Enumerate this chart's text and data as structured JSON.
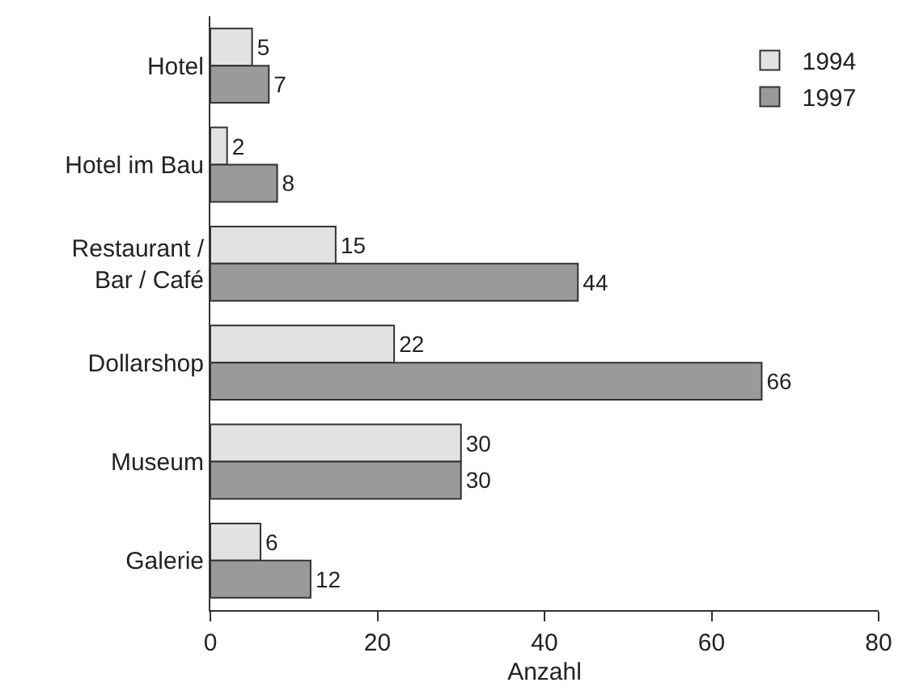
{
  "chart_data": {
    "type": "bar",
    "orientation": "horizontal",
    "xlabel": "Anzahl",
    "categories": [
      "Hotel",
      "Hotel im Bau",
      "Restaurant /\nBar / Café",
      "Dollarshop",
      "Museum",
      "Galerie"
    ],
    "series": [
      {
        "name": "1994",
        "color": "#e2e2e2",
        "values": [
          5,
          2,
          15,
          22,
          30,
          6
        ]
      },
      {
        "name": "1997",
        "color": "#9a9a9a",
        "values": [
          7,
          8,
          44,
          66,
          30,
          12
        ]
      }
    ],
    "xlim": [
      0,
      80
    ],
    "xticks": [
      0,
      20,
      40,
      60,
      80
    ],
    "grid": false,
    "legend": "top right",
    "data_labels": true
  }
}
